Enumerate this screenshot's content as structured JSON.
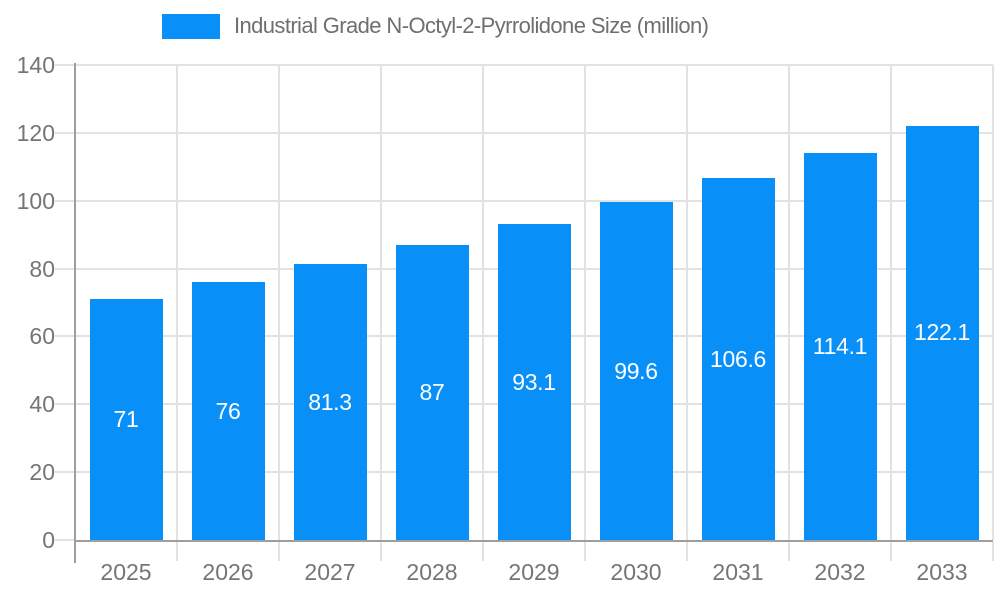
{
  "chart_data": {
    "type": "bar",
    "title": "Industrial Grade N-Octyl-2-Pyrrolidone Size (million)",
    "series_name": "Industrial Grade N-Octyl-2-Pyrrolidone Size (million)",
    "categories": [
      "2025",
      "2026",
      "2027",
      "2028",
      "2029",
      "2030",
      "2031",
      "2032",
      "2033"
    ],
    "values": [
      71,
      76,
      81.3,
      87,
      93.1,
      99.6,
      106.6,
      114.1,
      122.1
    ],
    "value_labels": [
      "71",
      "76",
      "81.3",
      "87",
      "93.1",
      "99.6",
      "106.6",
      "114.1",
      "122.1"
    ],
    "xlabel": "",
    "ylabel": "",
    "ylim": [
      0,
      140
    ],
    "yticks": [
      0,
      20,
      40,
      60,
      80,
      100,
      120,
      140
    ],
    "grid": true,
    "legend_position": "top",
    "colors": {
      "bar": "#0890F8",
      "bar_value_text": "#ffffff",
      "axis_text": "#757575",
      "legend_text": "#6f6f6f",
      "gridline": "#e2e2e2",
      "axis_line": "#9e9e9e",
      "background": "#ffffff"
    }
  }
}
